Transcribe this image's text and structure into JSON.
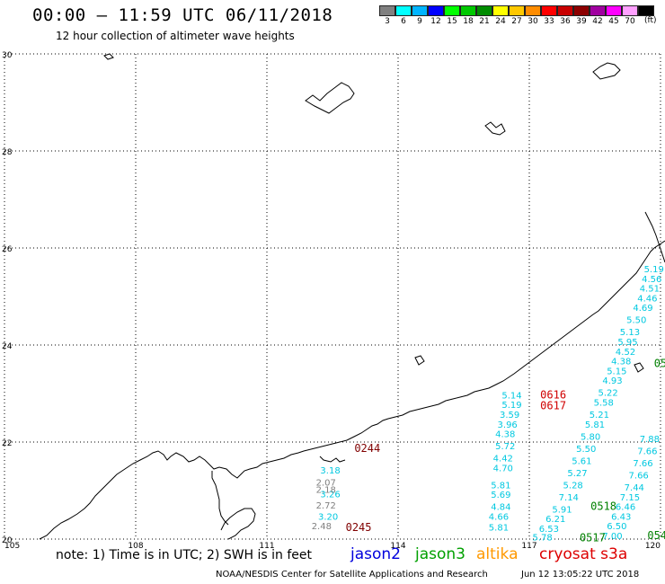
{
  "header": {
    "title": "00:00 – 11:59 UTC 06/11/2018",
    "subtitle": "12 hour collection of altimeter wave heights"
  },
  "color_scale": {
    "unit": "(ft)",
    "bins": [
      {
        "label": "3",
        "color": "#808080"
      },
      {
        "label": "6",
        "color": "#00ffff"
      },
      {
        "label": "9",
        "color": "#00b4ff"
      },
      {
        "label": "12",
        "color": "#0000ff"
      },
      {
        "label": "15",
        "color": "#00ff00"
      },
      {
        "label": "18",
        "color": "#00c800"
      },
      {
        "label": "21",
        "color": "#008c00"
      },
      {
        "label": "24",
        "color": "#ffff00"
      },
      {
        "label": "27",
        "color": "#ffc800"
      },
      {
        "label": "30",
        "color": "#ff8c00"
      },
      {
        "label": "33",
        "color": "#ff0000"
      },
      {
        "label": "36",
        "color": "#c80000"
      },
      {
        "label": "39",
        "color": "#8c0000"
      },
      {
        "label": "42",
        "color": "#a000a0"
      },
      {
        "label": "45",
        "color": "#ff00ff"
      },
      {
        "label": "70",
        "color": "#ffa0ff"
      },
      {
        "label": "",
        "color": "#000000"
      }
    ]
  },
  "map": {
    "lon_range": [
      105,
      120
    ],
    "lat_range": [
      20,
      30
    ],
    "lon_ticks": [
      "105",
      "108",
      "111",
      "114",
      "117",
      "120"
    ],
    "lat_ticks": [
      "30",
      "28",
      "26",
      "24",
      "22",
      "20"
    ],
    "grid": "dotted"
  },
  "tracks": [
    {
      "satellite": "jason2",
      "color": "#00c8e0",
      "observations": [
        {
          "lon": 112.45,
          "lat": 21.35,
          "swh": "3.18"
        },
        {
          "lon": 112.45,
          "lat": 20.86,
          "swh": "3.26"
        },
        {
          "lon": 112.4,
          "lat": 20.4,
          "swh": "3.20"
        },
        {
          "lon": 116.6,
          "lat": 22.9,
          "swh": "5.14"
        },
        {
          "lon": 116.6,
          "lat": 22.7,
          "swh": "5.19"
        },
        {
          "lon": 116.55,
          "lat": 22.5,
          "swh": "3.59"
        },
        {
          "lon": 116.5,
          "lat": 22.3,
          "swh": "3.96"
        },
        {
          "lon": 116.45,
          "lat": 22.1,
          "swh": "4.38"
        },
        {
          "lon": 116.45,
          "lat": 21.85,
          "swh": "5.72"
        },
        {
          "lon": 116.4,
          "lat": 21.6,
          "swh": "4.42"
        },
        {
          "lon": 116.4,
          "lat": 21.4,
          "swh": "4.70"
        },
        {
          "lon": 116.35,
          "lat": 21.05,
          "swh": "5.81"
        },
        {
          "lon": 116.35,
          "lat": 20.85,
          "swh": "5.69"
        },
        {
          "lon": 116.35,
          "lat": 20.6,
          "swh": "4.84"
        },
        {
          "lon": 116.3,
          "lat": 20.4,
          "swh": "4.66"
        },
        {
          "lon": 116.3,
          "lat": 20.18,
          "swh": "5.81"
        },
        {
          "lon": 119.85,
          "lat": 25.5,
          "swh": "5.19"
        },
        {
          "lon": 119.8,
          "lat": 25.3,
          "swh": "4.56"
        },
        {
          "lon": 119.75,
          "lat": 25.1,
          "swh": "4.51"
        },
        {
          "lon": 119.7,
          "lat": 24.9,
          "swh": "4.46"
        },
        {
          "lon": 119.6,
          "lat": 24.7,
          "swh": "4.69"
        },
        {
          "lon": 119.45,
          "lat": 24.45,
          "swh": "5.50"
        },
        {
          "lon": 119.3,
          "lat": 24.2,
          "swh": "5.13"
        },
        {
          "lon": 119.25,
          "lat": 24.0,
          "swh": "5.95"
        },
        {
          "lon": 119.2,
          "lat": 23.8,
          "swh": "4.52"
        },
        {
          "lon": 119.1,
          "lat": 23.6,
          "swh": "4.38"
        },
        {
          "lon": 119.0,
          "lat": 23.4,
          "swh": "5.15"
        },
        {
          "lon": 118.9,
          "lat": 23.2,
          "swh": "4.93"
        },
        {
          "lon": 118.8,
          "lat": 22.95,
          "swh": "5.22"
        },
        {
          "lon": 118.7,
          "lat": 22.75,
          "swh": "5.58"
        },
        {
          "lon": 118.6,
          "lat": 22.5,
          "swh": "5.21"
        },
        {
          "lon": 118.5,
          "lat": 22.3,
          "swh": "5.81"
        },
        {
          "lon": 118.4,
          "lat": 22.05,
          "swh": "5.80"
        },
        {
          "lon": 118.3,
          "lat": 21.8,
          "swh": "5.50"
        },
        {
          "lon": 118.2,
          "lat": 21.55,
          "swh": "5.61"
        },
        {
          "lon": 118.1,
          "lat": 21.3,
          "swh": "5.27"
        },
        {
          "lon": 118.0,
          "lat": 21.05,
          "swh": "5.28"
        },
        {
          "lon": 117.9,
          "lat": 20.8,
          "swh": "7.14"
        },
        {
          "lon": 117.75,
          "lat": 20.55,
          "swh": "5.91"
        },
        {
          "lon": 117.6,
          "lat": 20.35,
          "swh": "6.21"
        },
        {
          "lon": 117.45,
          "lat": 20.15,
          "swh": "6.53"
        },
        {
          "lon": 117.3,
          "lat": 19.97,
          "swh": "5.78"
        },
        {
          "lon": 119.75,
          "lat": 22.0,
          "swh": "7.88"
        },
        {
          "lon": 119.7,
          "lat": 21.75,
          "swh": "7.66"
        },
        {
          "lon": 119.6,
          "lat": 21.5,
          "swh": "7.66"
        },
        {
          "lon": 119.5,
          "lat": 21.25,
          "swh": "7.66"
        },
        {
          "lon": 119.4,
          "lat": 21.0,
          "swh": "7.44"
        },
        {
          "lon": 119.3,
          "lat": 20.8,
          "swh": "7.15"
        },
        {
          "lon": 119.2,
          "lat": 20.6,
          "swh": "6.46"
        },
        {
          "lon": 119.1,
          "lat": 20.4,
          "swh": "6.43"
        },
        {
          "lon": 119.0,
          "lat": 20.2,
          "swh": "6.50"
        },
        {
          "lon": 118.9,
          "lat": 20.0,
          "swh": "7.00"
        }
      ]
    },
    {
      "satellite": "cryosat s3a",
      "color": "#808080",
      "observations": [
        {
          "lon": 112.35,
          "lat": 21.1,
          "swh": "2.07"
        },
        {
          "lon": 112.35,
          "lat": 20.95,
          "swh": "2.18"
        },
        {
          "lon": 112.35,
          "lat": 20.63,
          "swh": "2.72"
        },
        {
          "lon": 112.25,
          "lat": 20.2,
          "swh": "2.48"
        }
      ]
    }
  ],
  "time_labels": [
    {
      "text": "0616",
      "lon": 117.25,
      "lat": 22.9,
      "color": "#d00000"
    },
    {
      "text": "0617",
      "lon": 117.25,
      "lat": 22.68,
      "color": "#d00000"
    },
    {
      "text": "0244",
      "lon": 113.0,
      "lat": 21.8,
      "color": "#800000"
    },
    {
      "text": "0245",
      "lon": 112.8,
      "lat": 20.17,
      "color": "#800000"
    },
    {
      "text": "0518",
      "lon": 118.4,
      "lat": 20.6,
      "color": "#008000"
    },
    {
      "text": "0517",
      "lon": 118.15,
      "lat": 19.95,
      "color": "#008000"
    },
    {
      "text": "054",
      "lon": 119.7,
      "lat": 20.0,
      "color": "#008000"
    },
    {
      "text": "05",
      "lon": 119.85,
      "lat": 23.55,
      "color": "#008000"
    }
  ],
  "footer": {
    "note": "note:  1) Time is in UTC;  2) SWH is in feet",
    "legend": [
      {
        "label": "jason2",
        "color": "#0000dd"
      },
      {
        "label": "jason3",
        "color": "#00a000"
      },
      {
        "label": "altika",
        "color": "#ff9900"
      },
      {
        "label": "cryosat s3a",
        "color": "#dd0000"
      }
    ],
    "credit": "NOAA/NESDIS Center for Satellite Applications and Research",
    "timestamp": "Jun 12 13:05:22 UTC 2018"
  }
}
